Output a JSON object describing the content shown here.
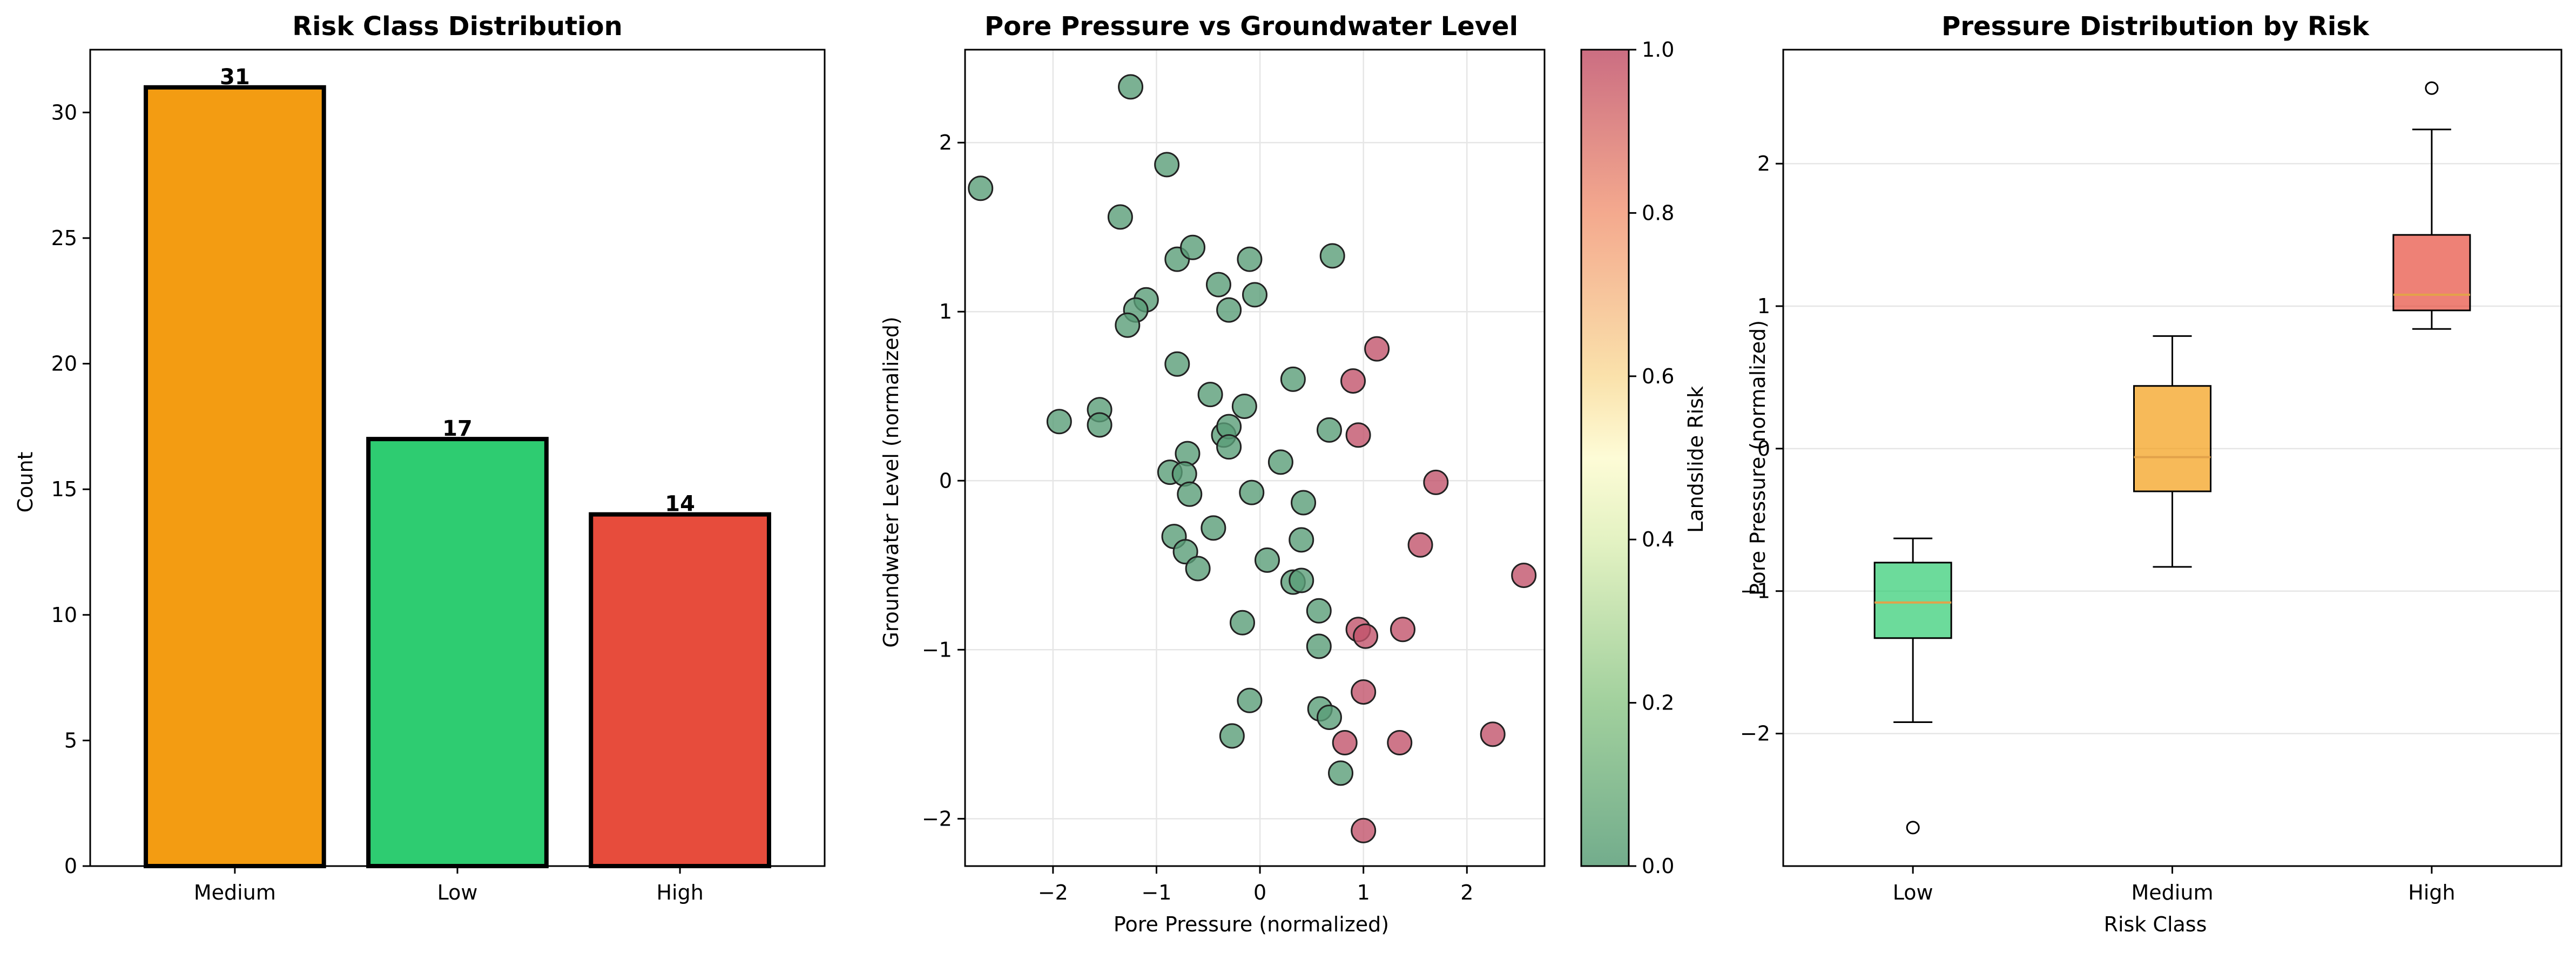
{
  "chart_data": [
    {
      "type": "bar",
      "title": "Risk Class Distribution",
      "xlabel": "",
      "ylabel": "Count",
      "categories": [
        "Medium",
        "Low",
        "High"
      ],
      "values": [
        31,
        17,
        14
      ],
      "colors": [
        "#f39c12",
        "#2ecc71",
        "#e74c3c"
      ],
      "ylim": [
        0,
        32.5
      ],
      "yticks": [
        0,
        5,
        10,
        15,
        20,
        25,
        30
      ],
      "grid": false
    },
    {
      "type": "scatter",
      "title": "Pore Pressure vs Groundwater Level",
      "xlabel": "Pore Pressure (normalized)",
      "ylabel": "Groundwater Level (normalized)",
      "xlim": [
        -2.85,
        2.75
      ],
      "ylim": [
        -2.28,
        2.55
      ],
      "xticks": [
        -2,
        -1,
        0,
        1,
        2
      ],
      "yticks": [
        -2,
        -1,
        0,
        1,
        2
      ],
      "grid": true,
      "colorbar": {
        "label": "Landslide Risk",
        "range": [
          0,
          1
        ],
        "ticks": [
          "0.0",
          "0.2",
          "0.4",
          "0.6",
          "0.8",
          "1.0"
        ]
      },
      "colors": {
        "low": "#5a9e78",
        "high": "#c2546c"
      },
      "points": [
        {
          "x": -2.7,
          "y": 1.73,
          "risk": 0
        },
        {
          "x": -1.25,
          "y": 2.33,
          "risk": 0
        },
        {
          "x": -0.9,
          "y": 1.87,
          "risk": 0
        },
        {
          "x": -1.35,
          "y": 1.56,
          "risk": 0
        },
        {
          "x": -0.8,
          "y": 1.31,
          "risk": 0
        },
        {
          "x": -0.65,
          "y": 1.38,
          "risk": 0
        },
        {
          "x": -0.1,
          "y": 1.31,
          "risk": 0
        },
        {
          "x": 0.7,
          "y": 1.33,
          "risk": 0
        },
        {
          "x": -0.4,
          "y": 1.16,
          "risk": 0
        },
        {
          "x": -0.05,
          "y": 1.1,
          "risk": 0
        },
        {
          "x": -1.1,
          "y": 1.07,
          "risk": 0
        },
        {
          "x": -1.2,
          "y": 1.01,
          "risk": 0
        },
        {
          "x": -0.3,
          "y": 1.01,
          "risk": 0
        },
        {
          "x": -1.28,
          "y": 0.92,
          "risk": 0
        },
        {
          "x": -0.8,
          "y": 0.69,
          "risk": 0
        },
        {
          "x": 0.32,
          "y": 0.6,
          "risk": 0
        },
        {
          "x": -0.48,
          "y": 0.51,
          "risk": 0
        },
        {
          "x": -0.15,
          "y": 0.44,
          "risk": 0
        },
        {
          "x": -1.94,
          "y": 0.35,
          "risk": 0
        },
        {
          "x": -1.55,
          "y": 0.42,
          "risk": 0
        },
        {
          "x": -1.55,
          "y": 0.33,
          "risk": 0
        },
        {
          "x": -0.35,
          "y": 0.27,
          "risk": 0
        },
        {
          "x": -0.3,
          "y": 0.32,
          "risk": 0
        },
        {
          "x": -0.3,
          "y": 0.2,
          "risk": 0
        },
        {
          "x": 0.67,
          "y": 0.3,
          "risk": 0
        },
        {
          "x": -0.7,
          "y": 0.16,
          "risk": 0
        },
        {
          "x": 0.2,
          "y": 0.11,
          "risk": 0
        },
        {
          "x": -0.87,
          "y": 0.05,
          "risk": 0
        },
        {
          "x": -0.73,
          "y": 0.04,
          "risk": 0
        },
        {
          "x": -0.68,
          "y": -0.08,
          "risk": 0
        },
        {
          "x": -0.08,
          "y": -0.07,
          "risk": 0
        },
        {
          "x": 0.42,
          "y": -0.13,
          "risk": 0
        },
        {
          "x": -0.45,
          "y": -0.28,
          "risk": 0
        },
        {
          "x": -0.83,
          "y": -0.33,
          "risk": 0
        },
        {
          "x": 0.4,
          "y": -0.35,
          "risk": 0
        },
        {
          "x": -0.72,
          "y": -0.42,
          "risk": 0
        },
        {
          "x": -0.6,
          "y": -0.52,
          "risk": 0
        },
        {
          "x": 0.07,
          "y": -0.47,
          "risk": 0
        },
        {
          "x": 0.32,
          "y": -0.6,
          "risk": 0
        },
        {
          "x": 0.4,
          "y": -0.59,
          "risk": 0
        },
        {
          "x": 0.57,
          "y": -0.77,
          "risk": 0
        },
        {
          "x": -0.17,
          "y": -0.84,
          "risk": 0
        },
        {
          "x": 0.57,
          "y": -0.98,
          "risk": 0
        },
        {
          "x": -0.1,
          "y": -1.3,
          "risk": 0
        },
        {
          "x": 0.58,
          "y": -1.35,
          "risk": 0
        },
        {
          "x": 0.67,
          "y": -1.4,
          "risk": 0
        },
        {
          "x": -0.27,
          "y": -1.51,
          "risk": 0
        },
        {
          "x": 0.78,
          "y": -1.73,
          "risk": 0
        },
        {
          "x": 1.13,
          "y": 0.78,
          "risk": 1
        },
        {
          "x": 0.9,
          "y": 0.59,
          "risk": 1
        },
        {
          "x": 0.95,
          "y": 0.27,
          "risk": 1
        },
        {
          "x": 1.7,
          "y": -0.01,
          "risk": 1
        },
        {
          "x": 1.55,
          "y": -0.38,
          "risk": 1
        },
        {
          "x": 2.55,
          "y": -0.56,
          "risk": 1
        },
        {
          "x": 0.95,
          "y": -0.88,
          "risk": 1
        },
        {
          "x": 1.02,
          "y": -0.92,
          "risk": 1
        },
        {
          "x": 1.38,
          "y": -0.88,
          "risk": 1
        },
        {
          "x": 1.0,
          "y": -1.25,
          "risk": 1
        },
        {
          "x": 2.25,
          "y": -1.5,
          "risk": 1
        },
        {
          "x": 0.82,
          "y": -1.55,
          "risk": 1
        },
        {
          "x": 1.35,
          "y": -1.55,
          "risk": 1
        },
        {
          "x": 1.0,
          "y": -2.07,
          "risk": 1
        }
      ]
    },
    {
      "type": "box",
      "title": "Pressure Distribution by Risk",
      "xlabel": "Risk Class",
      "ylabel": "Pore Pressure (normalized)",
      "ylim": [
        -2.93,
        2.8
      ],
      "yticks": [
        -2,
        -1,
        0,
        1,
        2
      ],
      "grid": true,
      "categories": [
        "Low",
        "Medium",
        "High"
      ],
      "boxes": [
        {
          "name": "Low",
          "q1": -1.33,
          "median": -1.08,
          "q3": -0.8,
          "whislo": -1.92,
          "whishi": -0.63,
          "fliers": [
            -2.66
          ],
          "color": "#2ecc71"
        },
        {
          "name": "Medium",
          "q1": -0.3,
          "median": -0.06,
          "q3": 0.44,
          "whislo": -0.83,
          "whishi": 0.79,
          "fliers": [],
          "color": "#f39c12"
        },
        {
          "name": "High",
          "q1": 0.97,
          "median": 1.08,
          "q3": 1.5,
          "whislo": 0.84,
          "whishi": 2.24,
          "fliers": [
            2.53
          ],
          "color": "#e74c3c"
        }
      ]
    }
  ]
}
